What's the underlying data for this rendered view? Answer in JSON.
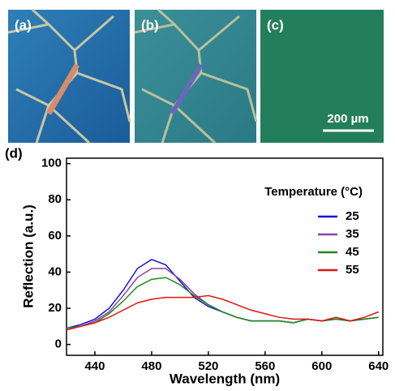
{
  "panels": {
    "labels": [
      "(a)",
      "(b)",
      "(c)",
      "(d)"
    ],
    "scale_bar": "200 µm"
  },
  "chart_data": {
    "type": "line",
    "x_label": "Wavelength (nm)",
    "y_label": "Reflection (a.u.)",
    "legend_title": "Temperature (°C)",
    "x": [
      420,
      430,
      440,
      450,
      460,
      470,
      480,
      490,
      500,
      510,
      520,
      530,
      540,
      550,
      560,
      570,
      580,
      590,
      600,
      610,
      620,
      630,
      640
    ],
    "series": [
      {
        "name": "25",
        "color": "#1414d2",
        "values": [
          9,
          11,
          14,
          20,
          30,
          42,
          47,
          44,
          35,
          26,
          21,
          18,
          15,
          13,
          13,
          13,
          12,
          14,
          13,
          14,
          13,
          14,
          15
        ]
      },
      {
        "name": "35",
        "color": "#8a3fb4",
        "values": [
          9,
          10,
          13,
          18,
          27,
          37,
          42,
          42,
          36,
          28,
          22,
          18,
          15,
          13,
          13,
          13,
          12,
          14,
          13,
          14,
          13,
          14,
          15
        ]
      },
      {
        "name": "45",
        "color": "#1c8c1c",
        "values": [
          9,
          10,
          12,
          17,
          24,
          32,
          36,
          37,
          33,
          27,
          22,
          18,
          15,
          13,
          13,
          13,
          12,
          14,
          13,
          14,
          13,
          14,
          15
        ]
      },
      {
        "name": "55",
        "color": "#e01414",
        "values": [
          8,
          10,
          12,
          15,
          19,
          23,
          25,
          26,
          26,
          26,
          27,
          25,
          22,
          19,
          17,
          15,
          14,
          14,
          13,
          15,
          13,
          15,
          18
        ]
      }
    ],
    "xlim": [
      420,
      643
    ],
    "ylim": [
      -6,
      103
    ],
    "xticks": [
      440,
      480,
      520,
      560,
      600,
      640
    ],
    "yticks": [
      0,
      20,
      40,
      60,
      80,
      100
    ]
  }
}
